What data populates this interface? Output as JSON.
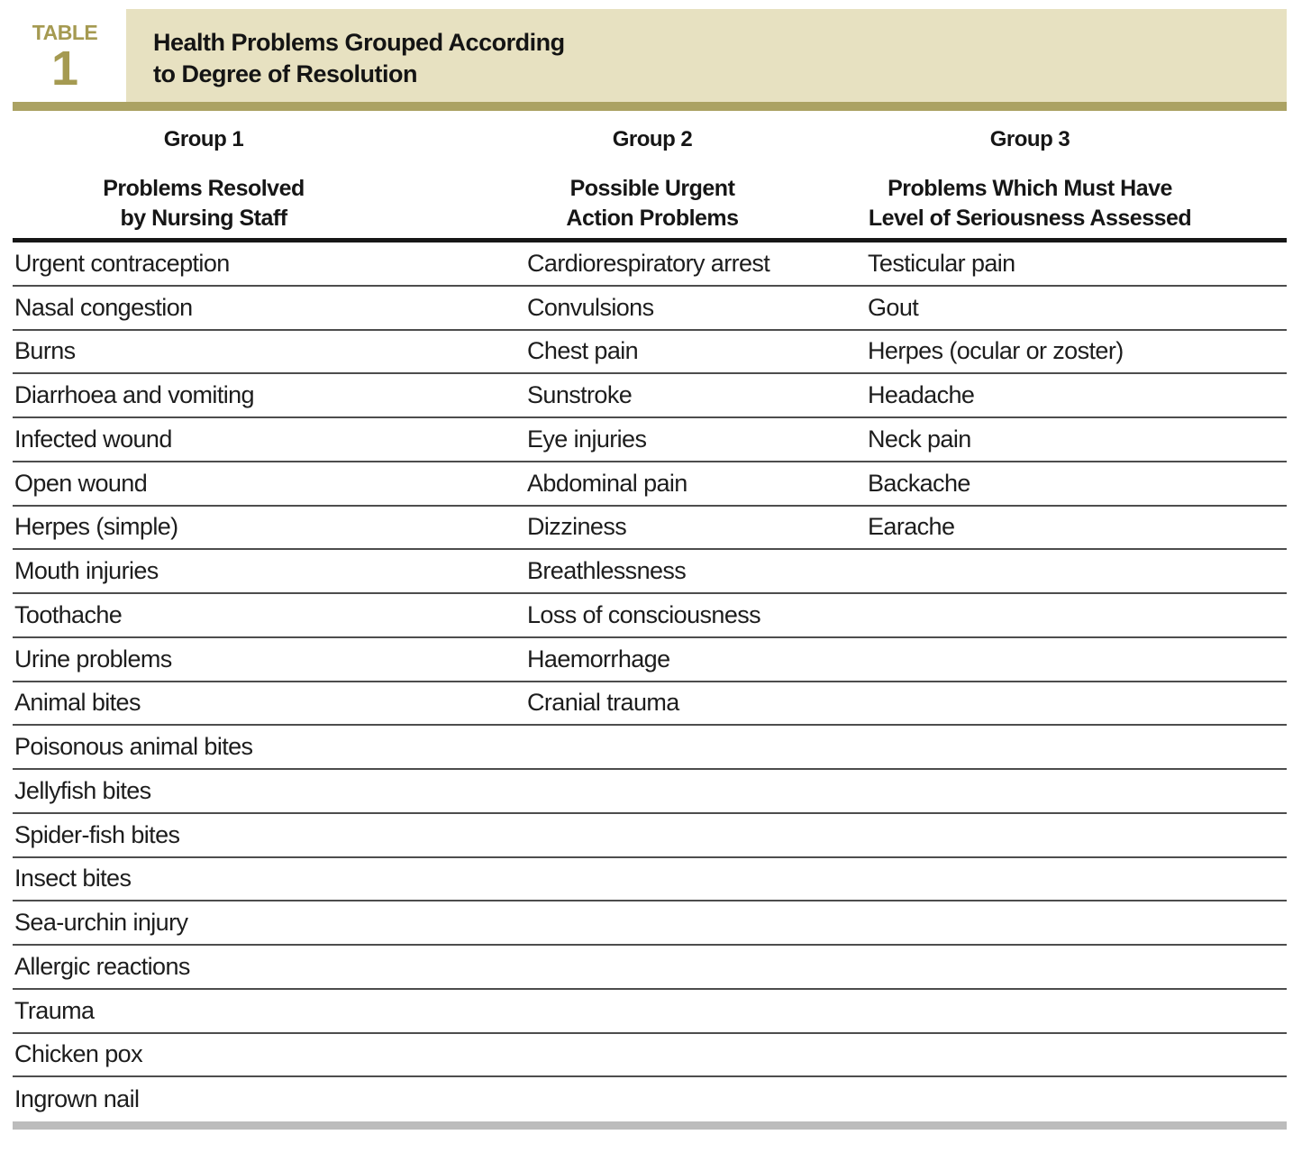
{
  "table_label": {
    "word": "TABLE",
    "number": "1"
  },
  "title": {
    "line1": "Health Problems Grouped According",
    "line2": "to Degree of Resolution"
  },
  "columns": [
    {
      "group": "Group 1",
      "subtitle_line1": "Problems Resolved",
      "subtitle_line2": "by Nursing Staff"
    },
    {
      "group": "Group 2",
      "subtitle_line1": "Possible Urgent",
      "subtitle_line2": "Action Problems"
    },
    {
      "group": "Group 3",
      "subtitle_line1": "Problems Which Must Have",
      "subtitle_line2": "Level of Seriousness Assessed"
    }
  ],
  "rows": [
    [
      "Urgent contraception",
      "Cardiorespiratory arrest",
      "Testicular pain"
    ],
    [
      "Nasal congestion",
      "Convulsions",
      "Gout"
    ],
    [
      "Burns",
      "Chest pain",
      "Herpes (ocular or zoster)"
    ],
    [
      "Diarrhoea and vomiting",
      "Sunstroke",
      "Headache"
    ],
    [
      "Infected wound",
      "Eye injuries",
      "Neck pain"
    ],
    [
      "Open wound",
      "Abdominal pain",
      "Backache"
    ],
    [
      "Herpes (simple)",
      "Dizziness",
      "Earache"
    ],
    [
      "Mouth injuries",
      "Breathlessness",
      ""
    ],
    [
      "Toothache",
      "Loss of consciousness",
      ""
    ],
    [
      "Urine problems",
      "Haemorrhage",
      ""
    ],
    [
      "Animal bites",
      "Cranial trauma",
      ""
    ],
    [
      "Poisonous animal bites",
      "",
      ""
    ],
    [
      "Jellyfish bites",
      "",
      ""
    ],
    [
      "Spider-fish bites",
      "",
      ""
    ],
    [
      "Insect bites",
      "",
      ""
    ],
    [
      "Sea-urchin injury",
      "",
      ""
    ],
    [
      "Allergic reactions",
      "",
      ""
    ],
    [
      "Trauma",
      "",
      ""
    ],
    [
      "Chicken pox",
      "",
      ""
    ],
    [
      "Ingrown nail",
      "",
      ""
    ]
  ],
  "colors": {
    "accent_olive": "#a59a51",
    "band_beige": "#e7e1c1",
    "bar_olive": "#aba263",
    "rule_dark": "#161616",
    "row_line": "#4d4d4d",
    "bottom_bar_gray": "#bcbcbc",
    "ink": "#1d1d1d"
  }
}
